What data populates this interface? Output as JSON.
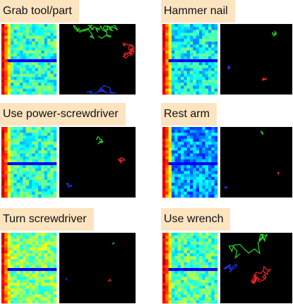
{
  "panels": [
    {
      "label": "Grab tool/part"
    },
    {
      "label": "Hammer nail"
    },
    {
      "label": "Use power-screwdriver"
    },
    {
      "label": "Rest arm"
    },
    {
      "label": "Turn screwdriver"
    },
    {
      "label": "Use wrench"
    }
  ]
}
